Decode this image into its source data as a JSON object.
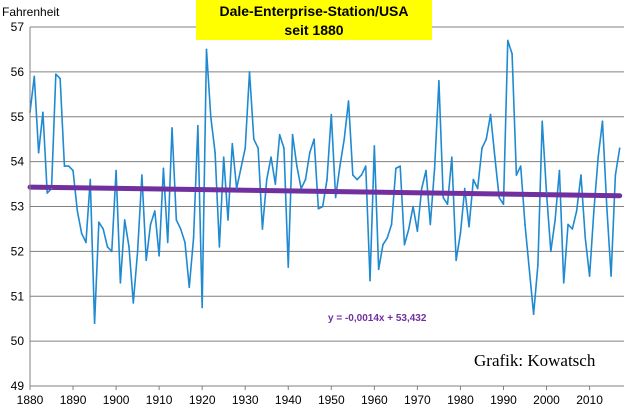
{
  "chart_data": {
    "type": "line",
    "title_lines": [
      "Dale-Enterprise-Station/USA",
      "seit 1880"
    ],
    "ylabel": "Fahrenheit",
    "xlabel": "",
    "xlim": [
      1880,
      2018
    ],
    "ylim": [
      49,
      57
    ],
    "x_ticks": [
      "1880",
      "1890",
      "1900",
      "1910",
      "1920",
      "1930",
      "1940",
      "1950",
      "1960",
      "1970",
      "1980",
      "1990",
      "2000",
      "2010"
    ],
    "y_ticks": [
      "49",
      "50",
      "51",
      "52",
      "53",
      "54",
      "55",
      "56",
      "57"
    ],
    "grid": "horizontal",
    "legend": "none",
    "series": [
      {
        "x": [
          1880,
          1881,
          1882,
          1883,
          1884,
          1885,
          1886,
          1887,
          1888,
          1889,
          1890,
          1891,
          1892,
          1893,
          1894,
          1895,
          1896,
          1897,
          1898,
          1899,
          1900,
          1901,
          1902,
          1903,
          1904,
          1905,
          1906,
          1907,
          1908,
          1909,
          1910,
          1911,
          1912,
          1913,
          1914,
          1915,
          1916,
          1917,
          1918,
          1919,
          1920,
          1921,
          1922,
          1923,
          1924,
          1925,
          1926,
          1927,
          1928,
          1929,
          1930,
          1931,
          1932,
          1933,
          1934,
          1935,
          1936,
          1937,
          1938,
          1939,
          1940,
          1941,
          1942,
          1943,
          1944,
          1945,
          1946,
          1947,
          1948,
          1949,
          1950,
          1951,
          1952,
          1953,
          1954,
          1955,
          1956,
          1957,
          1958,
          1959,
          1960,
          1961,
          1962,
          1963,
          1964,
          1965,
          1966,
          1967,
          1968,
          1969,
          1970,
          1971,
          1972,
          1973,
          1974,
          1975,
          1976,
          1977,
          1978,
          1979,
          1980,
          1981,
          1982,
          1983,
          1984,
          1985,
          1986,
          1987,
          1988,
          1989,
          1990,
          1991,
          1992,
          1993,
          1994,
          1995,
          1996,
          1997,
          1998,
          1999,
          2000,
          2001,
          2002,
          2003,
          2004,
          2005,
          2006,
          2007,
          2008,
          2009,
          2010,
          2011,
          2012,
          2013,
          2014,
          2015,
          2016,
          2017
        ],
        "values": [
          55.1,
          55.9,
          54.2,
          55.1,
          53.3,
          53.4,
          55.95,
          55.85,
          53.9,
          53.9,
          53.8,
          52.9,
          52.4,
          52.2,
          53.6,
          50.4,
          52.65,
          52.5,
          52.1,
          52.0,
          53.8,
          51.3,
          52.7,
          52.1,
          50.85,
          52.0,
          53.7,
          51.8,
          52.6,
          52.9,
          51.9,
          53.85,
          52.2,
          54.75,
          52.7,
          52.5,
          52.2,
          51.2,
          52.3,
          54.8,
          50.75,
          56.5,
          55.0,
          54.2,
          52.1,
          54.1,
          52.7,
          54.4,
          53.4,
          53.85,
          54.3,
          56.0,
          54.5,
          54.3,
          52.5,
          53.6,
          54.1,
          53.5,
          54.6,
          54.3,
          51.65,
          54.6,
          53.9,
          53.4,
          53.6,
          54.2,
          54.5,
          52.95,
          53.0,
          53.6,
          55.05,
          53.2,
          53.9,
          54.5,
          55.35,
          53.7,
          53.6,
          53.7,
          53.9,
          51.35,
          54.35,
          51.6,
          52.15,
          52.3,
          52.6,
          53.85,
          53.9,
          52.15,
          52.5,
          53.0,
          52.45,
          53.4,
          53.8,
          52.6,
          53.85,
          55.8,
          53.2,
          53.05,
          54.1,
          51.8,
          52.4,
          53.4,
          52.55,
          53.6,
          53.4,
          54.3,
          54.5,
          55.05,
          54.1,
          53.2,
          53.05,
          56.7,
          56.4,
          53.7,
          53.9,
          52.6,
          51.6,
          50.6,
          51.7,
          54.9,
          53.3,
          52.0,
          52.7,
          53.8,
          51.3,
          52.6,
          52.5,
          52.9,
          53.7,
          52.3,
          51.45,
          52.9,
          54.1,
          54.9,
          53.0,
          51.45,
          53.7,
          54.3
        ]
      }
    ],
    "trendline": {
      "label": "y = -0,0014x + 53,432",
      "slope_per_year": -0.0014,
      "intercept_at_first_year": 53.432
    },
    "annotation": "Grafik: Kowatsch",
    "colors": {
      "series": "#1F8AD1",
      "trendline": "#7030A0",
      "title_background": "#FFFF00",
      "grid": "#808080",
      "axis": "#808080"
    }
  }
}
